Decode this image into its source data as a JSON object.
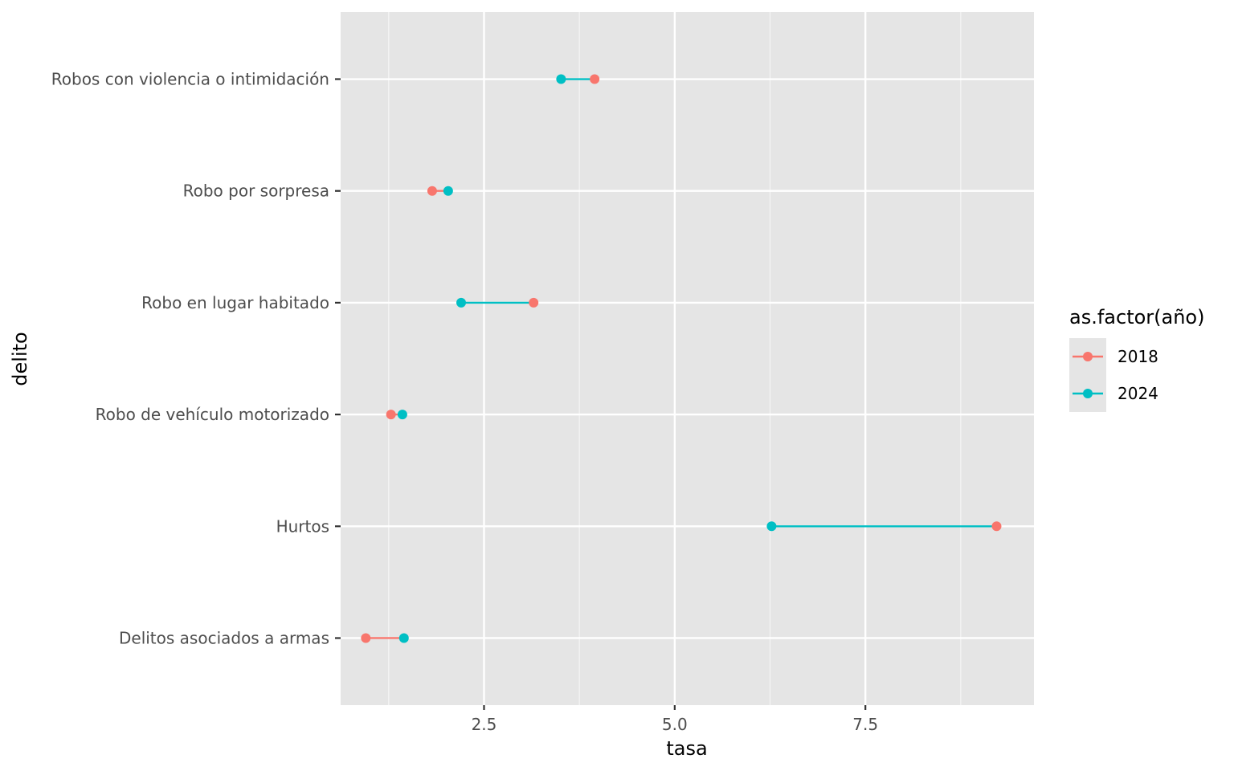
{
  "chart_data": {
    "type": "dumbbell",
    "xlabel": "tasa",
    "ylabel": "delito",
    "xlim": [
      0.62,
      9.71
    ],
    "x_ticks": [
      2.5,
      5.0,
      7.5
    ],
    "x_tick_labels": [
      "2.5",
      "5.0",
      "7.5"
    ],
    "categories": [
      "Delitos asociados a armas",
      "Hurtos",
      "Robo de vehículo motorizado",
      "Robo en lugar habitado",
      "Robo por sorpresa",
      "Robos con violencia o intimidación"
    ],
    "series": [
      {
        "name": "2018",
        "color": "#F8766D",
        "values": [
          0.95,
          9.22,
          1.28,
          3.15,
          1.82,
          3.95
        ]
      },
      {
        "name": "2024",
        "color": "#00BFC4",
        "values": [
          1.45,
          6.27,
          1.43,
          2.2,
          2.03,
          3.51
        ]
      }
    ],
    "legend": {
      "title": "as.factor(año)",
      "position": "right"
    },
    "grid": true,
    "background": "#E5E5E5"
  }
}
